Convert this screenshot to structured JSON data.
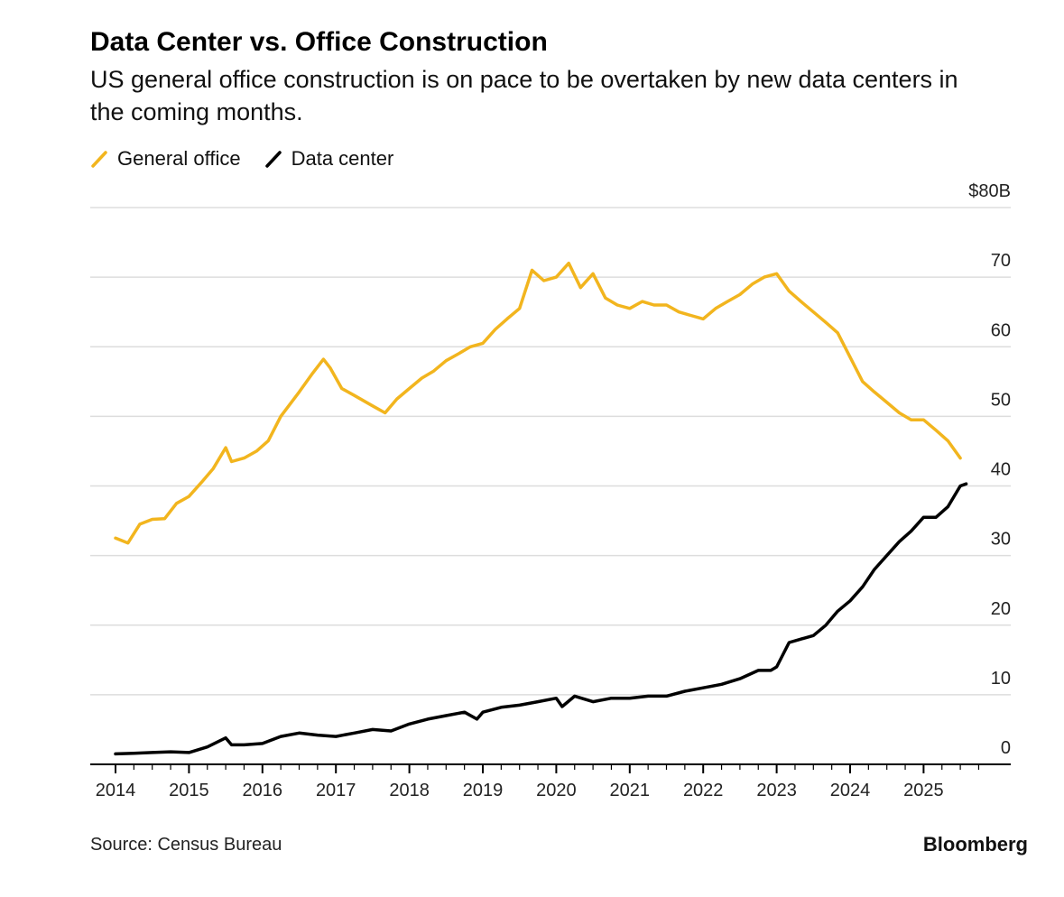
{
  "header": {
    "title": "Data Center vs. Office Construction",
    "subtitle": "US general office construction is on pace to be overtaken by new data centers in the coming months."
  },
  "footer": {
    "source": "Source: Census Bureau",
    "brand": "Bloomberg"
  },
  "colors": {
    "general_office": "#F2B51E",
    "data_center": "#000000",
    "grid": "#dddddd",
    "axis": "#000000"
  },
  "chart_data": {
    "type": "line",
    "title": "Data Center vs. Office Construction",
    "subtitle": "US general office construction is on pace to be overtaken by new data centers in the coming months.",
    "xlabel": "",
    "ylabel": "",
    "x_ticks": [
      "2014",
      "2015",
      "2016",
      "2017",
      "2018",
      "2019",
      "2020",
      "2021",
      "2022",
      "2023",
      "2024",
      "2025"
    ],
    "y_ticks": [
      "0",
      "10",
      "20",
      "30",
      "40",
      "50",
      "60",
      "70",
      "$80B"
    ],
    "ylim": [
      0,
      80
    ],
    "xlim": [
      2014,
      2026.3
    ],
    "grid": true,
    "legend": "top-left",
    "series": [
      {
        "name": "General office",
        "color": "#F2B51E",
        "points": [
          [
            2014.0,
            32.5
          ],
          [
            2014.17,
            31.8
          ],
          [
            2014.33,
            34.5
          ],
          [
            2014.5,
            35.2
          ],
          [
            2014.67,
            35.3
          ],
          [
            2014.83,
            37.5
          ],
          [
            2015.0,
            38.5
          ],
          [
            2015.17,
            40.5
          ],
          [
            2015.33,
            42.5
          ],
          [
            2015.5,
            45.5
          ],
          [
            2015.58,
            43.5
          ],
          [
            2015.75,
            44.0
          ],
          [
            2015.92,
            45.0
          ],
          [
            2016.08,
            46.5
          ],
          [
            2016.25,
            50.0
          ],
          [
            2016.5,
            53.5
          ],
          [
            2016.67,
            56.0
          ],
          [
            2016.83,
            58.2
          ],
          [
            2016.92,
            57.0
          ],
          [
            2017.08,
            54.0
          ],
          [
            2017.25,
            53.0
          ],
          [
            2017.5,
            51.5
          ],
          [
            2017.67,
            50.5
          ],
          [
            2017.83,
            52.5
          ],
          [
            2018.0,
            54.0
          ],
          [
            2018.17,
            55.5
          ],
          [
            2018.33,
            56.5
          ],
          [
            2018.5,
            58.0
          ],
          [
            2018.67,
            59.0
          ],
          [
            2018.83,
            60.0
          ],
          [
            2019.0,
            60.5
          ],
          [
            2019.17,
            62.5
          ],
          [
            2019.33,
            64.0
          ],
          [
            2019.5,
            65.5
          ],
          [
            2019.67,
            71.0
          ],
          [
            2019.83,
            69.5
          ],
          [
            2020.0,
            70.0
          ],
          [
            2020.17,
            72.0
          ],
          [
            2020.33,
            68.5
          ],
          [
            2020.5,
            70.5
          ],
          [
            2020.67,
            67.0
          ],
          [
            2020.83,
            66.0
          ],
          [
            2021.0,
            65.5
          ],
          [
            2021.17,
            66.5
          ],
          [
            2021.33,
            66.0
          ],
          [
            2021.5,
            66.0
          ],
          [
            2021.67,
            65.0
          ],
          [
            2021.83,
            64.5
          ],
          [
            2022.0,
            64.0
          ],
          [
            2022.17,
            65.5
          ],
          [
            2022.33,
            66.5
          ],
          [
            2022.5,
            67.5
          ],
          [
            2022.67,
            69.0
          ],
          [
            2022.83,
            70.0
          ],
          [
            2023.0,
            70.5
          ],
          [
            2023.17,
            68.0
          ],
          [
            2023.33,
            66.5
          ],
          [
            2023.5,
            65.0
          ],
          [
            2023.67,
            63.5
          ],
          [
            2023.83,
            62.0
          ],
          [
            2024.0,
            58.5
          ],
          [
            2024.17,
            55.0
          ],
          [
            2024.33,
            53.5
          ],
          [
            2024.5,
            52.0
          ],
          [
            2024.67,
            50.5
          ],
          [
            2024.83,
            49.5
          ],
          [
            2025.0,
            49.5
          ],
          [
            2025.17,
            48.0
          ],
          [
            2025.33,
            46.5
          ],
          [
            2025.5,
            44.0
          ]
        ]
      },
      {
        "name": "Data center",
        "color": "#000000",
        "points": [
          [
            2014.0,
            1.5
          ],
          [
            2014.25,
            1.6
          ],
          [
            2014.5,
            1.7
          ],
          [
            2014.75,
            1.8
          ],
          [
            2015.0,
            1.7
          ],
          [
            2015.25,
            2.5
          ],
          [
            2015.5,
            3.8
          ],
          [
            2015.58,
            2.8
          ],
          [
            2015.75,
            2.8
          ],
          [
            2016.0,
            3.0
          ],
          [
            2016.25,
            4.0
          ],
          [
            2016.5,
            4.5
          ],
          [
            2016.75,
            4.2
          ],
          [
            2017.0,
            4.0
          ],
          [
            2017.25,
            4.5
          ],
          [
            2017.5,
            5.0
          ],
          [
            2017.75,
            4.8
          ],
          [
            2018.0,
            5.8
          ],
          [
            2018.25,
            6.5
          ],
          [
            2018.5,
            7.0
          ],
          [
            2018.75,
            7.5
          ],
          [
            2018.92,
            6.5
          ],
          [
            2019.0,
            7.5
          ],
          [
            2019.25,
            8.2
          ],
          [
            2019.5,
            8.5
          ],
          [
            2019.75,
            9.0
          ],
          [
            2020.0,
            9.5
          ],
          [
            2020.08,
            8.3
          ],
          [
            2020.25,
            9.8
          ],
          [
            2020.5,
            9.0
          ],
          [
            2020.75,
            9.5
          ],
          [
            2021.0,
            9.5
          ],
          [
            2021.25,
            9.8
          ],
          [
            2021.5,
            9.8
          ],
          [
            2021.75,
            10.5
          ],
          [
            2022.0,
            11.0
          ],
          [
            2022.25,
            11.5
          ],
          [
            2022.5,
            12.3
          ],
          [
            2022.75,
            13.5
          ],
          [
            2022.92,
            13.5
          ],
          [
            2023.0,
            14.0
          ],
          [
            2023.17,
            17.5
          ],
          [
            2023.33,
            18.0
          ],
          [
            2023.5,
            18.5
          ],
          [
            2023.67,
            20.0
          ],
          [
            2023.83,
            22.0
          ],
          [
            2024.0,
            23.5
          ],
          [
            2024.17,
            25.5
          ],
          [
            2024.33,
            28.0
          ],
          [
            2024.5,
            30.0
          ],
          [
            2024.67,
            32.0
          ],
          [
            2024.83,
            33.5
          ],
          [
            2025.0,
            35.5
          ],
          [
            2025.17,
            35.5
          ],
          [
            2025.33,
            37.0
          ],
          [
            2025.5,
            40.0
          ],
          [
            2025.58,
            40.3
          ]
        ]
      }
    ]
  }
}
